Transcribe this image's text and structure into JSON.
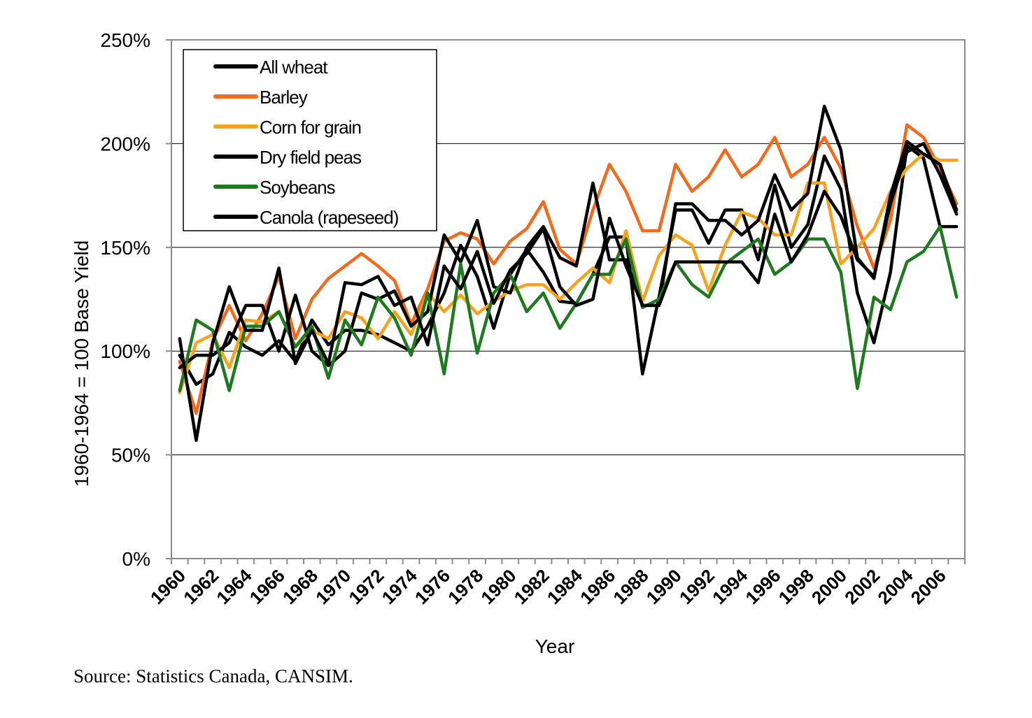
{
  "chart_data": {
    "type": "line",
    "xlabel": "Year",
    "ylabel": "1960-1964 = 100 Base Yield",
    "ylim": [
      0,
      250
    ],
    "yticks": [
      "0%",
      "50%",
      "100%",
      "150%",
      "200%",
      "250%"
    ],
    "xticks": [
      "1960",
      "1962",
      "1964",
      "1966",
      "1968",
      "1970",
      "1972",
      "1974",
      "1976",
      "1978",
      "1980",
      "1982",
      "1984",
      "1986",
      "1988",
      "1990",
      "1992",
      "1994",
      "1996",
      "1998",
      "2000",
      "2002",
      "2004",
      "2006"
    ],
    "x": [
      1960,
      1961,
      1962,
      1963,
      1964,
      1965,
      1966,
      1967,
      1968,
      1969,
      1970,
      1971,
      1972,
      1973,
      1974,
      1975,
      1976,
      1977,
      1978,
      1979,
      1980,
      1981,
      1982,
      1983,
      1984,
      1985,
      1986,
      1987,
      1988,
      1989,
      1990,
      1991,
      1992,
      1993,
      1994,
      1995,
      1996,
      1997,
      1998,
      1999,
      2000,
      2001,
      2002,
      2003,
      2004,
      2005,
      2006,
      2007
    ],
    "grid": "horizontal",
    "legend": "top-left",
    "series": [
      {
        "name": "All wheat",
        "color": "#000000",
        "values": [
          98,
          84,
          89,
          109,
          102,
          98,
          105,
          95,
          115,
          103,
          110,
          110,
          108,
          104,
          100,
          112,
          128,
          151,
          136,
          111,
          137,
          149,
          138,
          124,
          123,
          137,
          155,
          155,
          89,
          126,
          168,
          168,
          152,
          168,
          168,
          144,
          180,
          150,
          161,
          194,
          178,
          128,
          104,
          138,
          199,
          193,
          160,
          160
        ]
      },
      {
        "name": "Barley",
        "color": "#f26a1e",
        "values": [
          95,
          70,
          105,
          122,
          105,
          118,
          136,
          106,
          125,
          135,
          141,
          147,
          141,
          134,
          113,
          130,
          153,
          157,
          154,
          142,
          153,
          159,
          172,
          149,
          142,
          168,
          190,
          177,
          158,
          158,
          190,
          177,
          184,
          197,
          184,
          190,
          203,
          184,
          190,
          203,
          188,
          160,
          140,
          163,
          209,
          203,
          188,
          171
        ]
      },
      {
        "name": "Corn for grain",
        "color": "#f7a21c",
        "values": [
          80,
          104,
          108,
          92,
          115,
          114,
          119,
          102,
          110,
          106,
          119,
          116,
          106,
          119,
          108,
          128,
          119,
          127,
          118,
          124,
          129,
          132,
          132,
          125,
          133,
          140,
          133,
          158,
          124,
          146,
          156,
          151,
          129,
          151,
          167,
          164,
          156,
          156,
          181,
          181,
          142,
          150,
          159,
          177,
          188,
          195,
          192,
          192
        ]
      },
      {
        "name": "Dry field peas",
        "color": "#000000",
        "values": [
          92,
          98,
          98,
          104,
          122,
          122,
          100,
          127,
          100,
          93,
          100,
          128,
          125,
          129,
          112,
          119,
          156,
          143,
          163,
          131,
          128,
          150,
          160,
          145,
          141,
          181,
          144,
          144,
          122,
          122,
          171,
          171,
          163,
          163,
          156,
          163,
          185,
          168,
          176,
          218,
          197,
          145,
          135,
          175,
          201,
          195,
          190,
          168
        ]
      },
      {
        "name": "Soybeans",
        "color": "#1e7a1e",
        "values": [
          81,
          115,
          110,
          81,
          112,
          112,
          119,
          102,
          112,
          87,
          115,
          103,
          126,
          116,
          98,
          128,
          89,
          142,
          99,
          128,
          137,
          119,
          128,
          111,
          123,
          137,
          137,
          154,
          121,
          125,
          143,
          132,
          126,
          142,
          148,
          154,
          137,
          143,
          154,
          154,
          138,
          82,
          126,
          120,
          143,
          148,
          160,
          126
        ]
      },
      {
        "name": "Canola (rapeseed)",
        "color": "#000000",
        "values": [
          106,
          57,
          104,
          131,
          110,
          110,
          140,
          94,
          110,
          94,
          133,
          132,
          136,
          122,
          126,
          103,
          141,
          130,
          148,
          123,
          139,
          147,
          159,
          131,
          122,
          125,
          164,
          141,
          122,
          122,
          143,
          143,
          143,
          143,
          143,
          133,
          166,
          143,
          156,
          177,
          165,
          144,
          136,
          171,
          196,
          200,
          185,
          166
        ]
      }
    ]
  },
  "source_note": "Source: Statistics Canada, CANSIM."
}
